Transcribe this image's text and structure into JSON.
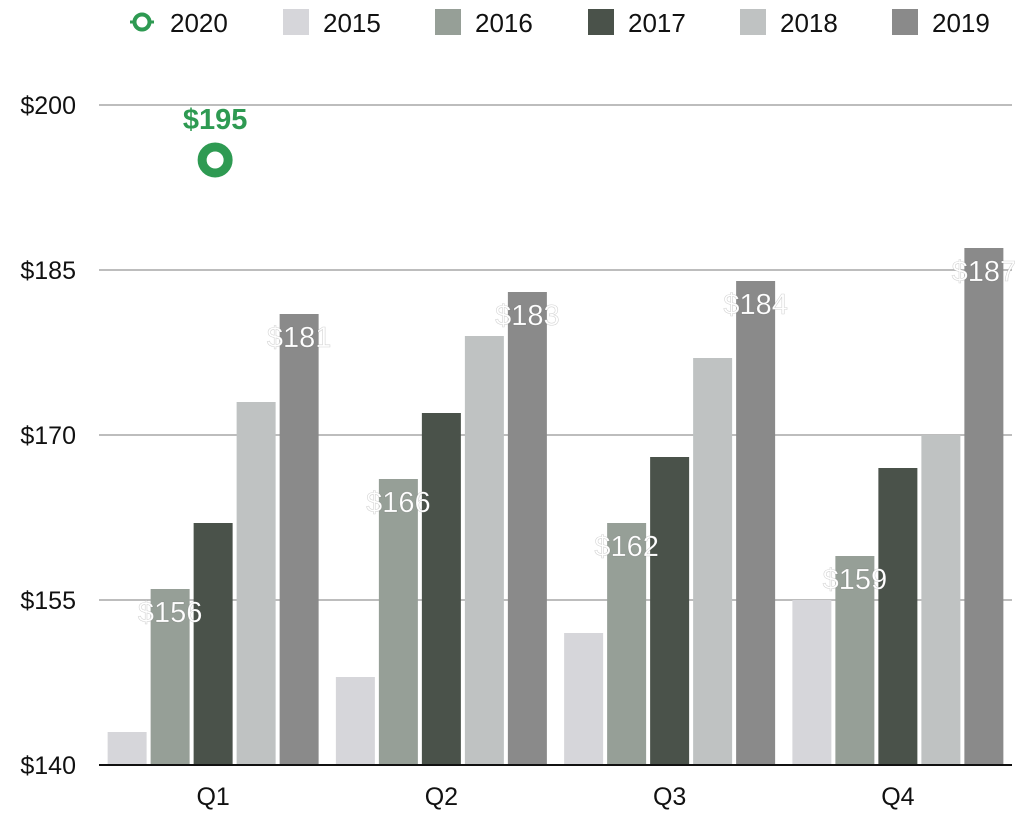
{
  "chart_data": {
    "type": "bar",
    "categories": [
      "Q1",
      "Q2",
      "Q3",
      "Q4"
    ],
    "ylim": [
      140,
      205
    ],
    "yticks": [
      140,
      155,
      170,
      185,
      200
    ],
    "ytick_labels": [
      "$140",
      "$155",
      "$170",
      "$185",
      "$200"
    ],
    "grid": true,
    "legend_placement": "top",
    "series": [
      {
        "name": "2015",
        "color": "#d6d6da",
        "values": [
          143,
          148,
          152,
          155
        ],
        "labels": [
          "",
          "",
          "",
          ""
        ]
      },
      {
        "name": "2016",
        "color": "#969f97",
        "values": [
          156,
          166,
          162,
          159
        ],
        "labels": [
          "$156",
          "$166",
          "$162",
          "$159"
        ]
      },
      {
        "name": "2017",
        "color": "#4a524a",
        "values": [
          162,
          172,
          168,
          167
        ],
        "labels": [
          "",
          "",
          "",
          ""
        ]
      },
      {
        "name": "2018",
        "color": "#bfc2c2",
        "values": [
          173,
          179,
          177,
          170
        ],
        "labels": [
          "",
          "",
          "",
          ""
        ]
      },
      {
        "name": "2019",
        "color": "#8a8a8a",
        "values": [
          181,
          183,
          184,
          187
        ],
        "labels": [
          "$181",
          "$183",
          "$184",
          "$187"
        ]
      }
    ],
    "point_series": {
      "name": "2020",
      "color": "#2e9a52",
      "type": "scatter",
      "values": [
        195,
        null,
        null,
        null
      ],
      "labels": [
        "$195",
        "",
        "",
        ""
      ]
    },
    "legend_order": [
      "2020",
      "2015",
      "2016",
      "2017",
      "2018",
      "2019"
    ]
  }
}
